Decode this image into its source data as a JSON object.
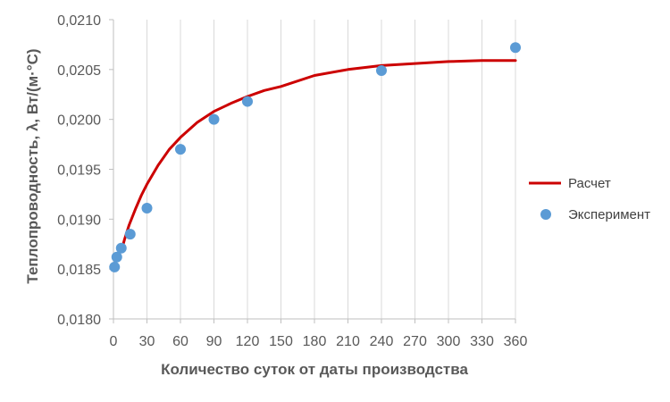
{
  "chart_data": {
    "type": "scatter",
    "xlabel": "Количество суток от даты производства",
    "ylabel": "Теплопроводность, λ, Вт/(м·°С)",
    "xlim": [
      0,
      360
    ],
    "ylim": [
      0.018,
      0.021
    ],
    "x_ticks": [
      0,
      30,
      60,
      90,
      120,
      150,
      180,
      210,
      240,
      270,
      300,
      330,
      360
    ],
    "x_tick_labels": [
      "0",
      "30",
      "60",
      "90",
      "120",
      "150",
      "180",
      "210",
      "240",
      "270",
      "300",
      "330",
      "360"
    ],
    "y_ticks": [
      0.018,
      0.0185,
      0.019,
      0.0195,
      0.02,
      0.0205,
      0.021
    ],
    "y_tick_labels": [
      "0,0180",
      "0,0185",
      "0,0190",
      "0,0195",
      "0,0200",
      "0,0205",
      "0,0210"
    ],
    "grid": "vertical",
    "legend_position": "right",
    "series": [
      {
        "name": "Расчет",
        "kind": "line",
        "color": "#cc0000",
        "x": [
          7,
          10,
          14,
          20,
          25,
          30,
          40,
          50,
          60,
          75,
          90,
          105,
          120,
          135,
          150,
          180,
          210,
          240,
          270,
          300,
          330,
          360
        ],
        "y": [
          0.01868,
          0.0188,
          0.01894,
          0.01911,
          0.01924,
          0.01935,
          0.01954,
          0.0197,
          0.01982,
          0.01997,
          0.02008,
          0.02016,
          0.02023,
          0.02029,
          0.02033,
          0.02044,
          0.0205,
          0.02054,
          0.02056,
          0.02058,
          0.02059,
          0.02059
        ]
      },
      {
        "name": "Эксперимент",
        "kind": "scatter",
        "color": "#5b9bd5",
        "x": [
          1,
          3,
          7,
          15,
          30,
          60,
          90,
          120,
          240,
          360
        ],
        "y": [
          0.01852,
          0.01862,
          0.01871,
          0.01885,
          0.01911,
          0.0197,
          0.02,
          0.02018,
          0.02049,
          0.02072
        ]
      }
    ]
  }
}
